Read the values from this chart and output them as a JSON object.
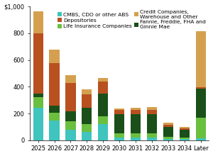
{
  "categories": [
    "2025",
    "2026",
    "2027",
    "2028",
    "2029",
    "2030",
    "2031",
    "2032",
    "2033",
    "2034",
    "Later"
  ],
  "series_order": [
    "CMBS, CDO or other ABS",
    "Life Insurance Companies",
    "Fannie, Freddie, FHA and\nGinnie Mae",
    "Depositories",
    "Credit Companies,\nWarehouse and Other"
  ],
  "series": {
    "CMBS, CDO or other ABS": [
      245,
      145,
      80,
      65,
      120,
      20,
      20,
      20,
      10,
      10,
      15
    ],
    "Life Insurance Companies": [
      75,
      60,
      60,
      55,
      60,
      30,
      30,
      30,
      15,
      10,
      155
    ],
    "Fannie, Freddie, FHA and\nGinnie Mae": [
      30,
      55,
      75,
      125,
      170,
      145,
      145,
      145,
      75,
      60,
      215
    ],
    "Depositories": [
      450,
      315,
      215,
      100,
      90,
      30,
      30,
      30,
      15,
      10,
      10
    ],
    "Credit Companies,\nWarehouse and Other": [
      165,
      100,
      55,
      35,
      25,
      15,
      20,
      25,
      15,
      10,
      420
    ]
  },
  "colors": {
    "CMBS, CDO or other ABS": "#3fc4be",
    "Life Insurance Companies": "#6bbf3e",
    "Fannie, Freddie, FHA and\nGinnie Mae": "#1a4f1a",
    "Depositories": "#b85020",
    "Credit Companies,\nWarehouse and Other": "#d4a050"
  },
  "ylim": [
    0,
    1000
  ],
  "yticks": [
    0,
    200,
    400,
    600,
    800,
    1000
  ],
  "figsize": [
    3.0,
    2.2
  ],
  "dpi": 100,
  "legend_fontsize": 5.4,
  "tick_fontsize": 6.0,
  "background_color": "#ffffff"
}
